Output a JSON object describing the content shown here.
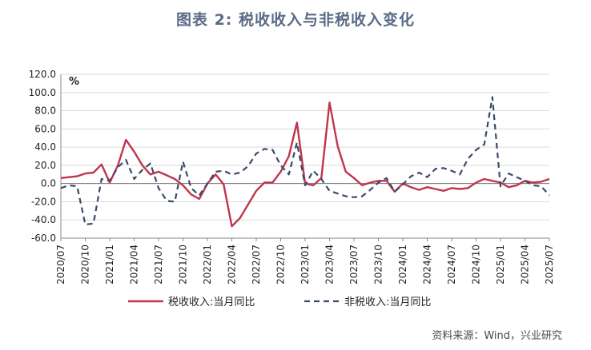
{
  "title": "图表 2:  税收收入与非税收入变化",
  "source": "资料来源：Wind，兴业研究",
  "colors": {
    "title": "#5a6b86",
    "tax": "#c0354d",
    "nontax": "#3c4a6b"
  },
  "chart_data": {
    "type": "line",
    "unit_label": "%",
    "ylim": [
      -60,
      120
    ],
    "yticks": [
      "120.0",
      "100.0",
      "80.0",
      "60.0",
      "40.0",
      "20.0",
      "0.0",
      "-20.0",
      "-40.0",
      "-60.0"
    ],
    "x": [
      "2020/07",
      "2020/08",
      "2020/09",
      "2020/10",
      "2020/11",
      "2020/12",
      "2021/01",
      "2021/02",
      "2021/03",
      "2021/04",
      "2021/05",
      "2021/06",
      "2021/07",
      "2021/08",
      "2021/09",
      "2021/10",
      "2021/11",
      "2021/12",
      "2022/01",
      "2022/02",
      "2022/03",
      "2022/04",
      "2022/05",
      "2022/06",
      "2022/07",
      "2022/08",
      "2022/09",
      "2022/10",
      "2022/11",
      "2022/12",
      "2023/01",
      "2023/02",
      "2023/03",
      "2023/04",
      "2023/05",
      "2023/06",
      "2023/07",
      "2023/08",
      "2023/09",
      "2023/10",
      "2023/11",
      "2023/12",
      "2024/01",
      "2024/02",
      "2024/03",
      "2024/04",
      "2024/05",
      "2024/06",
      "2024/07",
      "2024/08",
      "2024/09",
      "2024/10",
      "2024/11",
      "2024/12",
      "2025/01",
      "2025/02",
      "2025/03",
      "2025/04",
      "2025/05",
      "2025/06",
      "2025/07"
    ],
    "xtick_labels": [
      "2020/07",
      "2020/10",
      "2021/01",
      "2021/04",
      "2021/07",
      "2021/10",
      "2022/01",
      "2022/04",
      "2022/07",
      "2022/10",
      "2023/01",
      "2023/04",
      "2023/07",
      "2023/10",
      "2024/01",
      "2024/04",
      "2024/07",
      "2024/10",
      "2025/01",
      "2025/04",
      "2025/07"
    ],
    "series": [
      {
        "name": "税收收入:当月同比",
        "style": "solid",
        "values": [
          6,
          7,
          8,
          11,
          12,
          21,
          1,
          20,
          48,
          35,
          20,
          10,
          13,
          9,
          5,
          -2,
          -12,
          -17,
          0,
          10,
          -1,
          -47,
          -38,
          -23,
          -8,
          1,
          1,
          13,
          30,
          67,
          0,
          -2,
          6,
          89,
          41,
          13,
          6,
          -2,
          1,
          3,
          3,
          -9,
          0,
          -4,
          -7,
          -4,
          -6,
          -8,
          -5,
          -6,
          -5,
          1,
          5,
          3,
          1,
          -4,
          -2,
          3,
          1,
          2,
          5
        ]
      },
      {
        "name": "非税收入:当月同比",
        "style": "dashed",
        "values": [
          -5,
          -2,
          -3,
          -45,
          -44,
          5,
          3,
          18,
          26,
          5,
          15,
          22,
          -5,
          -19,
          -20,
          24,
          -5,
          -13,
          0,
          13,
          14,
          10,
          12,
          19,
          33,
          38,
          37,
          20,
          10,
          45,
          -2,
          14,
          5,
          -8,
          -11,
          -14,
          -15,
          -14,
          -7,
          1,
          6,
          -9,
          -1,
          8,
          12,
          7,
          16,
          17,
          14,
          10,
          27,
          37,
          43,
          95,
          -3,
          11,
          7,
          3,
          -2,
          -3,
          -13
        ]
      }
    ],
    "grid": "horizontal",
    "legend_position": "bottom"
  }
}
